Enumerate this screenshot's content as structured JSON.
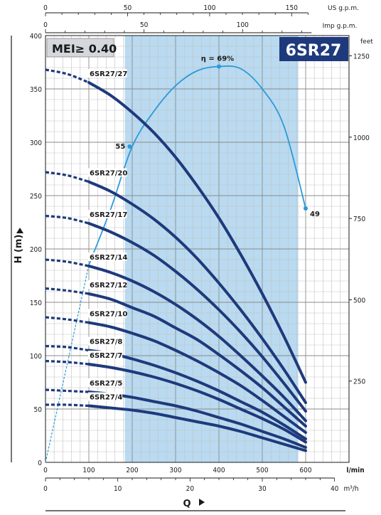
{
  "chart_data": {
    "type": "line",
    "model": "6SR27",
    "mei_label": "MEI≥ 0.40",
    "xlabel": "Q",
    "ylabel": "H (m)",
    "x_unit": "l/min",
    "x_ticks": [
      0,
      100,
      200,
      300,
      400,
      500,
      600
    ],
    "xlim": [
      0,
      700
    ],
    "y_ticks": [
      0,
      50,
      100,
      150,
      200,
      250,
      300,
      350,
      400
    ],
    "ylim": [
      0,
      400
    ],
    "feet_unit": "feet",
    "feet_ticks": [
      250,
      500,
      750,
      1000,
      1250
    ],
    "us_gpm_unit": "US g.p.m.",
    "us_gpm_ticks": [
      0,
      50,
      100,
      150
    ],
    "imp_gpm_unit": "Imp g.p.m.",
    "imp_gpm_ticks": [
      0,
      50,
      100
    ],
    "m3h_unit": "m³/h",
    "m3h_ticks": [
      0,
      10,
      20,
      30,
      40
    ],
    "grid": true,
    "recommended_range": [
      183,
      583
    ],
    "series": [
      {
        "name": "6SR27/27",
        "x": [
          0,
          50,
          100,
          150,
          200,
          250,
          300,
          350,
          400,
          450,
          500,
          550,
          600
        ],
        "y": [
          368,
          364,
          356,
          344,
          328,
          309,
          286,
          259,
          229,
          195,
          158,
          118,
          75
        ]
      },
      {
        "name": "6SR27/20",
        "x": [
          0,
          50,
          100,
          150,
          200,
          250,
          300,
          350,
          400,
          450,
          500,
          550,
          600
        ],
        "y": [
          272,
          269,
          263,
          254,
          242,
          228,
          211,
          191,
          168,
          143,
          116,
          87,
          56
        ]
      },
      {
        "name": "6SR27/17",
        "x": [
          0,
          50,
          100,
          150,
          200,
          250,
          300,
          350,
          400,
          450,
          500,
          550,
          600
        ],
        "y": [
          231,
          229,
          224,
          216,
          206,
          194,
          179,
          162,
          143,
          122,
          99,
          74,
          48
        ]
      },
      {
        "name": "6SR27/14",
        "x": [
          0,
          50,
          100,
          150,
          200,
          250,
          300,
          350,
          400,
          450,
          500,
          550,
          600
        ],
        "y": [
          190,
          188,
          184,
          178,
          170,
          160,
          148,
          134,
          118,
          100,
          81,
          61,
          39
        ]
      },
      {
        "name": "6SR27/12",
        "x": [
          0,
          50,
          100,
          150,
          200,
          250,
          300,
          350,
          400,
          450,
          500,
          550,
          600
        ],
        "y": [
          163,
          161,
          158,
          153,
          145,
          137,
          126,
          115,
          101,
          86,
          70,
          52,
          34
        ]
      },
      {
        "name": "6SR27/10",
        "x": [
          0,
          50,
          100,
          150,
          200,
          250,
          300,
          350,
          400,
          450,
          500,
          550,
          600
        ],
        "y": [
          136,
          134,
          131,
          127,
          121,
          114,
          105,
          95,
          84,
          72,
          58,
          43,
          28
        ]
      },
      {
        "name": "6SR27/8",
        "x": [
          0,
          50,
          100,
          150,
          200,
          250,
          300,
          350,
          400,
          450,
          500,
          550,
          600
        ],
        "y": [
          109,
          108,
          105,
          102,
          97,
          91,
          84,
          76,
          67,
          57,
          47,
          35,
          22
        ]
      },
      {
        "name": "6SR27/7",
        "x": [
          0,
          50,
          100,
          150,
          200,
          250,
          300,
          350,
          400,
          450,
          500,
          550,
          600
        ],
        "y": [
          95,
          94,
          92,
          89,
          85,
          80,
          74,
          67,
          59,
          50,
          41,
          31,
          19
        ]
      },
      {
        "name": "6SR27/5",
        "x": [
          0,
          50,
          100,
          150,
          200,
          250,
          300,
          350,
          400,
          450,
          500,
          550,
          600
        ],
        "y": [
          68,
          67,
          66,
          64,
          61,
          57,
          53,
          48,
          42,
          36,
          29,
          22,
          14
        ]
      },
      {
        "name": "6SR27/4",
        "x": [
          0,
          50,
          100,
          150,
          200,
          250,
          300,
          350,
          400,
          450,
          500,
          550,
          600
        ],
        "y": [
          54,
          54,
          53,
          51,
          49,
          46,
          42,
          38,
          34,
          29,
          23,
          17,
          11
        ]
      }
    ],
    "efficiency": {
      "x": [
        0,
        50,
        100,
        150,
        200,
        250,
        300,
        350,
        400,
        450,
        500,
        550,
        600
      ],
      "y": [
        0,
        92,
        185,
        237,
        296,
        329,
        353,
        367,
        371,
        369,
        350,
        315,
        238
      ],
      "peak_label": "η = 69%",
      "point_labels": [
        {
          "x": 194,
          "y": 296,
          "text": "55"
        },
        {
          "x": 600,
          "y": 238,
          "text": "49"
        }
      ]
    }
  }
}
